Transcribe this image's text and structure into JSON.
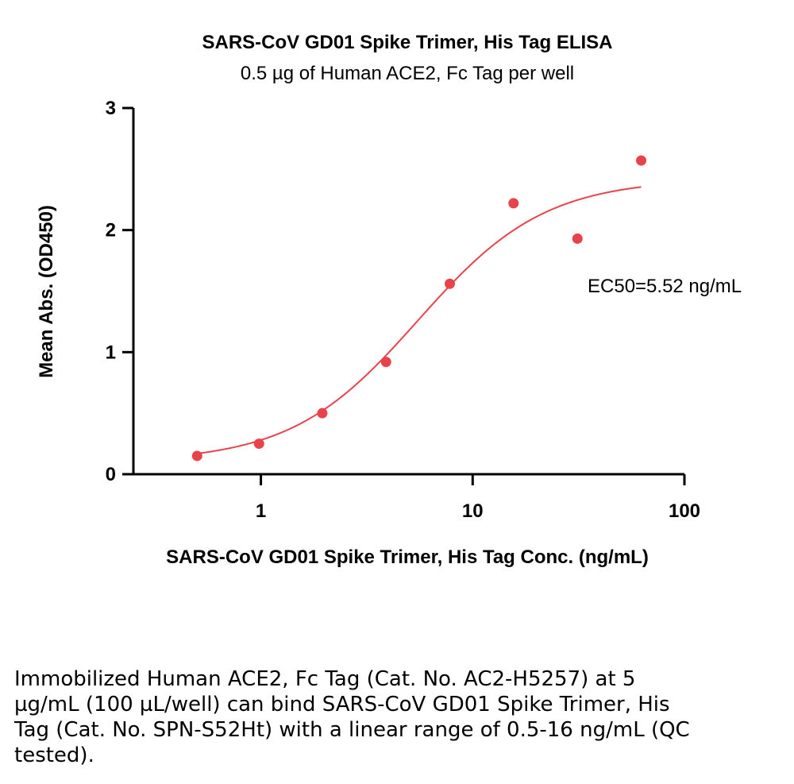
{
  "chart_data": {
    "type": "scatter",
    "title": "SARS-CoV GD01 Spike Trimer, His Tag ELISA",
    "subtitle": "0.5 µg of Human ACE2, Fc Tag per well",
    "xlabel": "SARS-CoV GD01 Spike Trimer, His Tag Conc. (ng/mL)",
    "ylabel": "Mean Abs. (OD450)",
    "x_scale": "log",
    "xlim": [
      0.25,
      100
    ],
    "ylim": [
      0,
      3
    ],
    "x_ticks": [
      1,
      10,
      100
    ],
    "x_tick_labels": [
      "1",
      "10",
      "100"
    ],
    "y_ticks": [
      0,
      1,
      2,
      3
    ],
    "y_tick_labels": [
      "0",
      "1",
      "2",
      "3"
    ],
    "grid": false,
    "color": "#e8434b",
    "series": [
      {
        "x": [
          0.5,
          0.98,
          1.95,
          3.9,
          7.8,
          15.6,
          31.25,
          62.5
        ],
        "y": [
          0.15,
          0.25,
          0.5,
          0.92,
          1.56,
          2.22,
          1.93,
          2.57
        ]
      }
    ],
    "fit": {
      "type": "4PL",
      "bottom": 0.1,
      "top": 2.42,
      "ec50": 5.52,
      "hill": 1.45,
      "x_range": [
        0.5,
        62.5
      ]
    },
    "annotation": "EC50=5.52 ng/mL"
  },
  "caption": "Immobilized Human ACE2, Fc Tag (Cat. No. AC2-H5257) at 5 µg/mL (100 µL/well) can bind SARS-CoV GD01 Spike Trimer, His Tag (Cat. No. SPN-S52Ht) with a linear range of 0.5-16 ng/mL (QC tested)."
}
